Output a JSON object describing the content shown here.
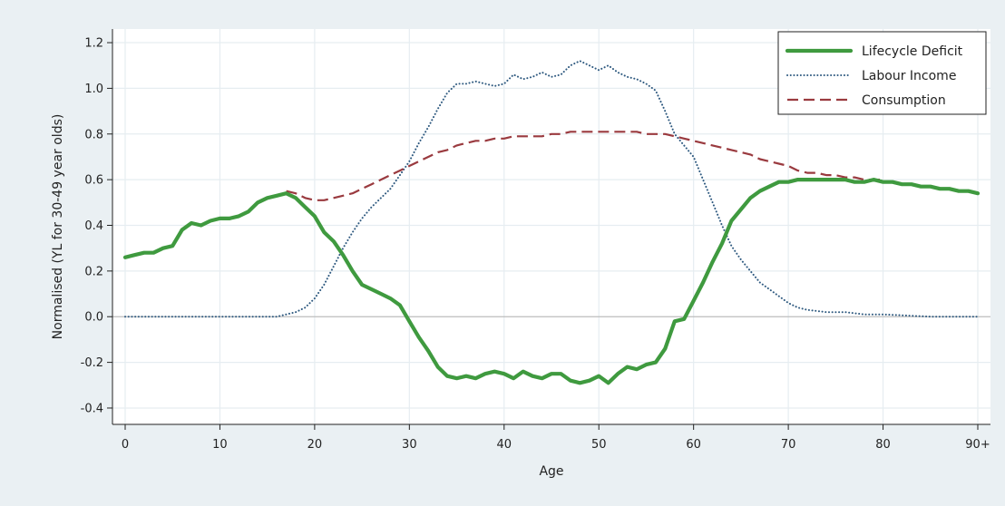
{
  "chart_data": {
    "type": "line",
    "title": "",
    "xlabel": "Age",
    "ylabel": "Normalised (YL for 30-49 year olds)",
    "xlim": [
      0,
      90
    ],
    "ylim": [
      -0.42,
      1.22
    ],
    "x_ticks": [
      {
        "value": 0,
        "label": "0"
      },
      {
        "value": 10,
        "label": "10"
      },
      {
        "value": 20,
        "label": "20"
      },
      {
        "value": 30,
        "label": "30"
      },
      {
        "value": 40,
        "label": "40"
      },
      {
        "value": 50,
        "label": "50"
      },
      {
        "value": 60,
        "label": "60"
      },
      {
        "value": 70,
        "label": "70"
      },
      {
        "value": 80,
        "label": "80"
      },
      {
        "value": 90,
        "label": "90+"
      }
    ],
    "y_ticks": [
      {
        "value": -0.4,
        "label": "-0.4"
      },
      {
        "value": -0.2,
        "label": "-0.2"
      },
      {
        "value": 0.0,
        "label": "0.0"
      },
      {
        "value": 0.2,
        "label": "0.2"
      },
      {
        "value": 0.4,
        "label": "0.4"
      },
      {
        "value": 0.6,
        "label": "0.6"
      },
      {
        "value": 0.8,
        "label": "0.8"
      },
      {
        "value": 1.0,
        "label": "1.0"
      },
      {
        "value": 1.2,
        "label": "1.2"
      }
    ],
    "grid": true,
    "legend_position": "top-right",
    "series": [
      {
        "name": "Lifecycle Deficit",
        "style": "solid",
        "color": "#3f9a3f",
        "points": [
          [
            0,
            0.26
          ],
          [
            1,
            0.27
          ],
          [
            2,
            0.28
          ],
          [
            3,
            0.28
          ],
          [
            4,
            0.3
          ],
          [
            5,
            0.31
          ],
          [
            6,
            0.38
          ],
          [
            7,
            0.41
          ],
          [
            8,
            0.4
          ],
          [
            9,
            0.42
          ],
          [
            10,
            0.43
          ],
          [
            11,
            0.43
          ],
          [
            12,
            0.44
          ],
          [
            13,
            0.46
          ],
          [
            14,
            0.5
          ],
          [
            15,
            0.52
          ],
          [
            16,
            0.53
          ],
          [
            17,
            0.54
          ],
          [
            18,
            0.52
          ],
          [
            19,
            0.48
          ],
          [
            20,
            0.44
          ],
          [
            21,
            0.37
          ],
          [
            22,
            0.33
          ],
          [
            23,
            0.27
          ],
          [
            24,
            0.2
          ],
          [
            25,
            0.14
          ],
          [
            26,
            0.12
          ],
          [
            27,
            0.1
          ],
          [
            28,
            0.08
          ],
          [
            29,
            0.05
          ],
          [
            30,
            -0.02
          ],
          [
            31,
            -0.09
          ],
          [
            32,
            -0.15
          ],
          [
            33,
            -0.22
          ],
          [
            34,
            -0.26
          ],
          [
            35,
            -0.27
          ],
          [
            36,
            -0.26
          ],
          [
            37,
            -0.27
          ],
          [
            38,
            -0.25
          ],
          [
            39,
            -0.24
          ],
          [
            40,
            -0.25
          ],
          [
            41,
            -0.27
          ],
          [
            42,
            -0.24
          ],
          [
            43,
            -0.26
          ],
          [
            44,
            -0.27
          ],
          [
            45,
            -0.25
          ],
          [
            46,
            -0.25
          ],
          [
            47,
            -0.28
          ],
          [
            48,
            -0.29
          ],
          [
            49,
            -0.28
          ],
          [
            50,
            -0.26
          ],
          [
            51,
            -0.29
          ],
          [
            52,
            -0.25
          ],
          [
            53,
            -0.22
          ],
          [
            54,
            -0.23
          ],
          [
            55,
            -0.21
          ],
          [
            56,
            -0.2
          ],
          [
            57,
            -0.14
          ],
          [
            58,
            -0.02
          ],
          [
            59,
            -0.01
          ],
          [
            60,
            0.07
          ],
          [
            61,
            0.15
          ],
          [
            62,
            0.24
          ],
          [
            63,
            0.32
          ],
          [
            64,
            0.42
          ],
          [
            65,
            0.47
          ],
          [
            66,
            0.52
          ],
          [
            67,
            0.55
          ],
          [
            68,
            0.57
          ],
          [
            69,
            0.59
          ],
          [
            70,
            0.59
          ],
          [
            71,
            0.6
          ],
          [
            72,
            0.6
          ],
          [
            73,
            0.6
          ],
          [
            74,
            0.6
          ],
          [
            75,
            0.6
          ],
          [
            76,
            0.6
          ],
          [
            77,
            0.59
          ],
          [
            78,
            0.59
          ],
          [
            79,
            0.6
          ],
          [
            80,
            0.59
          ],
          [
            81,
            0.59
          ],
          [
            82,
            0.58
          ],
          [
            83,
            0.58
          ],
          [
            84,
            0.57
          ],
          [
            85,
            0.57
          ],
          [
            86,
            0.56
          ],
          [
            87,
            0.56
          ],
          [
            88,
            0.55
          ],
          [
            89,
            0.55
          ],
          [
            90,
            0.54
          ]
        ]
      },
      {
        "name": "Labour Income",
        "style": "dotted",
        "color": "#2f5a80",
        "points": [
          [
            0,
            0.0
          ],
          [
            5,
            0.0
          ],
          [
            10,
            0.0
          ],
          [
            14,
            0.0
          ],
          [
            16,
            0.0
          ],
          [
            17,
            0.01
          ],
          [
            18,
            0.02
          ],
          [
            19,
            0.04
          ],
          [
            20,
            0.08
          ],
          [
            21,
            0.14
          ],
          [
            22,
            0.22
          ],
          [
            23,
            0.3
          ],
          [
            24,
            0.37
          ],
          [
            25,
            0.43
          ],
          [
            26,
            0.48
          ],
          [
            27,
            0.52
          ],
          [
            28,
            0.56
          ],
          [
            29,
            0.62
          ],
          [
            30,
            0.68
          ],
          [
            31,
            0.76
          ],
          [
            32,
            0.83
          ],
          [
            33,
            0.91
          ],
          [
            34,
            0.98
          ],
          [
            35,
            1.02
          ],
          [
            36,
            1.02
          ],
          [
            37,
            1.03
          ],
          [
            38,
            1.02
          ],
          [
            39,
            1.01
          ],
          [
            40,
            1.02
          ],
          [
            41,
            1.06
          ],
          [
            42,
            1.04
          ],
          [
            43,
            1.05
          ],
          [
            44,
            1.07
          ],
          [
            45,
            1.05
          ],
          [
            46,
            1.06
          ],
          [
            47,
            1.1
          ],
          [
            48,
            1.12
          ],
          [
            49,
            1.1
          ],
          [
            50,
            1.08
          ],
          [
            51,
            1.1
          ],
          [
            52,
            1.07
          ],
          [
            53,
            1.05
          ],
          [
            54,
            1.04
          ],
          [
            55,
            1.02
          ],
          [
            56,
            0.99
          ],
          [
            57,
            0.9
          ],
          [
            58,
            0.8
          ],
          [
            59,
            0.75
          ],
          [
            60,
            0.7
          ],
          [
            61,
            0.6
          ],
          [
            62,
            0.5
          ],
          [
            63,
            0.4
          ],
          [
            64,
            0.31
          ],
          [
            65,
            0.25
          ],
          [
            66,
            0.2
          ],
          [
            67,
            0.15
          ],
          [
            68,
            0.12
          ],
          [
            69,
            0.09
          ],
          [
            70,
            0.06
          ],
          [
            71,
            0.04
          ],
          [
            72,
            0.03
          ],
          [
            74,
            0.02
          ],
          [
            76,
            0.02
          ],
          [
            78,
            0.01
          ],
          [
            80,
            0.01
          ],
          [
            85,
            0.0
          ],
          [
            90,
            0.0
          ]
        ]
      },
      {
        "name": "Consumption",
        "style": "dashed",
        "color": "#9a3a3f",
        "points": [
          [
            17,
            0.55
          ],
          [
            18,
            0.54
          ],
          [
            19,
            0.52
          ],
          [
            20,
            0.51
          ],
          [
            21,
            0.51
          ],
          [
            22,
            0.52
          ],
          [
            23,
            0.53
          ],
          [
            24,
            0.54
          ],
          [
            25,
            0.56
          ],
          [
            26,
            0.58
          ],
          [
            27,
            0.6
          ],
          [
            28,
            0.62
          ],
          [
            29,
            0.64
          ],
          [
            30,
            0.66
          ],
          [
            31,
            0.68
          ],
          [
            32,
            0.7
          ],
          [
            33,
            0.72
          ],
          [
            34,
            0.73
          ],
          [
            35,
            0.75
          ],
          [
            36,
            0.76
          ],
          [
            37,
            0.77
          ],
          [
            38,
            0.77
          ],
          [
            39,
            0.78
          ],
          [
            40,
            0.78
          ],
          [
            41,
            0.79
          ],
          [
            42,
            0.79
          ],
          [
            43,
            0.79
          ],
          [
            44,
            0.79
          ],
          [
            45,
            0.8
          ],
          [
            46,
            0.8
          ],
          [
            47,
            0.81
          ],
          [
            48,
            0.81
          ],
          [
            49,
            0.81
          ],
          [
            50,
            0.81
          ],
          [
            51,
            0.81
          ],
          [
            52,
            0.81
          ],
          [
            53,
            0.81
          ],
          [
            54,
            0.81
          ],
          [
            55,
            0.8
          ],
          [
            56,
            0.8
          ],
          [
            57,
            0.8
          ],
          [
            58,
            0.79
          ],
          [
            59,
            0.78
          ],
          [
            60,
            0.77
          ],
          [
            61,
            0.76
          ],
          [
            62,
            0.75
          ],
          [
            63,
            0.74
          ],
          [
            64,
            0.73
          ],
          [
            65,
            0.72
          ],
          [
            66,
            0.71
          ],
          [
            67,
            0.69
          ],
          [
            68,
            0.68
          ],
          [
            69,
            0.67
          ],
          [
            70,
            0.66
          ],
          [
            71,
            0.64
          ],
          [
            72,
            0.63
          ],
          [
            73,
            0.63
          ],
          [
            74,
            0.62
          ],
          [
            75,
            0.62
          ],
          [
            76,
            0.61
          ],
          [
            77,
            0.61
          ],
          [
            78,
            0.6
          ],
          [
            79,
            0.6
          ],
          [
            80,
            0.6
          ]
        ]
      }
    ]
  }
}
